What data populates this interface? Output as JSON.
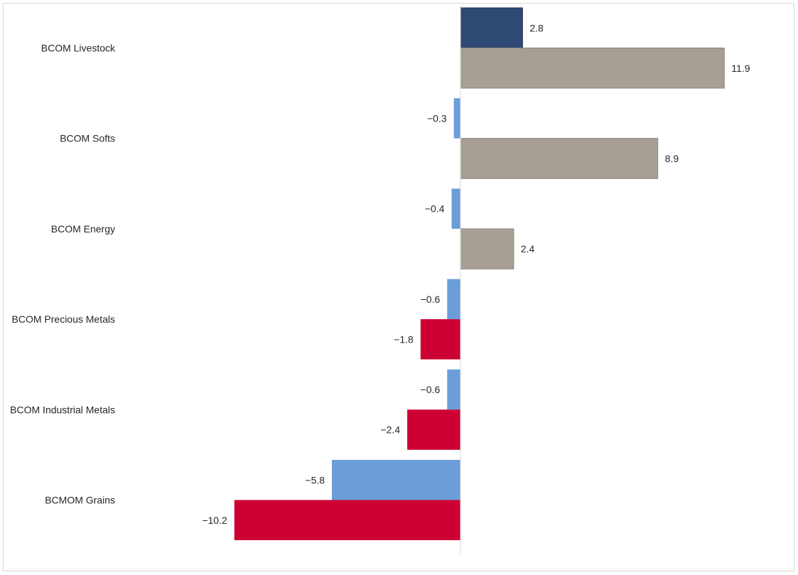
{
  "chart_data": {
    "type": "bar",
    "orientation": "horizontal",
    "title": "",
    "xlabel": "",
    "ylabel": "",
    "categories": [
      "BCOM Livestock",
      "BCOM Softs",
      "BCOM Energy",
      "BCOM Precious Metals",
      "BCOM Industrial Metals",
      "BCMOM Grains"
    ],
    "series": [
      {
        "values": [
          2.8,
          -0.3,
          -0.4,
          -0.6,
          -0.6,
          -5.8
        ],
        "colors": [
          "#2e4a73",
          "#6b9ed9",
          "#6b9ed9",
          "#6b9ed9",
          "#6b9ed9",
          "#6b9ed9"
        ]
      },
      {
        "values": [
          11.9,
          8.9,
          2.4,
          -1.8,
          -2.4,
          -10.2
        ],
        "colors": [
          "#a89f94",
          "#a89f94",
          "#a89f94",
          "#cc0033",
          "#cc0033",
          "#cc0033"
        ]
      }
    ],
    "xlim": [
      -10.2,
      11.9
    ],
    "grid": false,
    "legend": "none"
  }
}
